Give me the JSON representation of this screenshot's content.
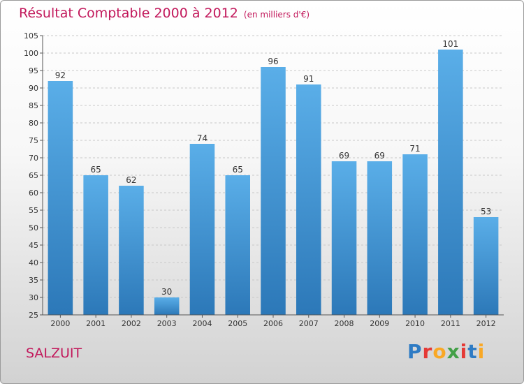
{
  "header": {
    "title": "Résultat Comptable 2000 à 2012",
    "subtitle": "(en milliers d'€)"
  },
  "location": "SALZUIT",
  "logo": {
    "parts": [
      {
        "text": "P",
        "color": "#2e7bc4"
      },
      {
        "text": "r",
        "color": "#e53935"
      },
      {
        "text": "o",
        "color": "#f9a825"
      },
      {
        "text": "x",
        "color": "#43a047"
      },
      {
        "text": "i",
        "color": "#e53935"
      },
      {
        "text": "t",
        "color": "#2e7bc4"
      },
      {
        "text": "i",
        "color": "#f9a825"
      }
    ]
  },
  "chart_data": {
    "type": "bar",
    "title": "Résultat Comptable 2000 à 2012",
    "subtitle": "(en milliers d'€)",
    "categories": [
      "2000",
      "2001",
      "2002",
      "2003",
      "2004",
      "2005",
      "2006",
      "2007",
      "2008",
      "2009",
      "2010",
      "2011",
      "2012"
    ],
    "values": [
      92,
      65,
      62,
      30,
      74,
      65,
      96,
      91,
      69,
      69,
      71,
      101,
      53
    ],
    "ylim": [
      25,
      105
    ],
    "yticks": [
      25,
      30,
      35,
      40,
      45,
      50,
      55,
      60,
      65,
      70,
      75,
      80,
      85,
      90,
      95,
      100,
      105
    ],
    "grid": "horizontal dashed",
    "bar_color_top": "#5aaee8",
    "bar_color_bottom": "#2c78b8"
  }
}
